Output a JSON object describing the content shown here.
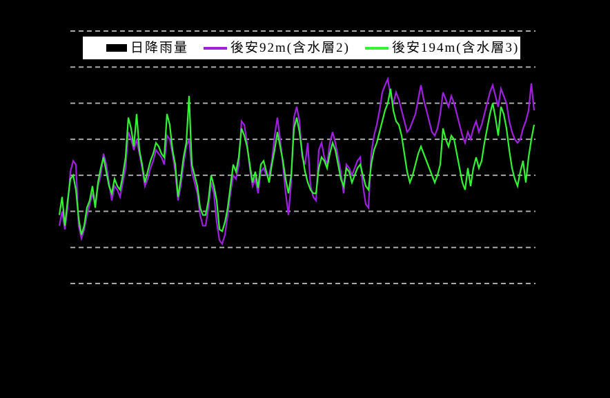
{
  "colors": {
    "background": "#000000",
    "gridline": "#AAAAAA",
    "legend_background": "#FFFFFF",
    "legend_border": "#000000",
    "legend_text": "#000000",
    "rainfall_series": "#000000",
    "well_92m_series": "#A020E0",
    "well_194m_series": "#33F333"
  },
  "legend": {
    "items": [
      {
        "label": "日降雨量",
        "swatch": "bar",
        "color": "#000000"
      },
      {
        "label": "後安92m(含水層2)",
        "swatch": "line",
        "color": "#A020E0"
      },
      {
        "label": "後安194m(含水層3)",
        "swatch": "line",
        "color": "#33F333"
      }
    ]
  },
  "chart_data": {
    "type": "line",
    "title": "",
    "xlabel": "",
    "ylabel": "",
    "grid": true,
    "legend_position": "top",
    "x_axis": {
      "tick_labels_visible": false
    },
    "y_axis": {
      "tick_labels_visible": false,
      "gridline_count": 8,
      "unit": "gridline-units (bottom visible gridline = 0, one unit per gridline)"
    },
    "ylim": [
      0,
      7
    ],
    "series": [
      {
        "name": "日降雨量",
        "type": "bar",
        "color": "#000000",
        "values": []
      },
      {
        "name": "後安92m(含水層2)",
        "type": "line",
        "color": "#A020E0",
        "values": [
          1.6,
          2.0,
          1.5,
          2.1,
          3.1,
          3.4,
          3.3,
          1.6,
          1.25,
          1.5,
          1.9,
          2.2,
          2.5,
          2.2,
          2.7,
          3.0,
          3.6,
          3.3,
          2.8,
          2.3,
          2.7,
          2.6,
          2.4,
          2.8,
          3.2,
          4.2,
          4.0,
          3.7,
          4.0,
          3.6,
          3.2,
          2.7,
          2.9,
          3.2,
          3.4,
          3.7,
          3.6,
          3.5,
          3.3,
          4.1,
          4.0,
          3.6,
          3.1,
          2.3,
          2.7,
          3.3,
          3.8,
          4.0,
          3.1,
          2.8,
          2.5,
          1.9,
          1.6,
          1.6,
          2.1,
          2.8,
          2.5,
          1.7,
          1.2,
          1.1,
          1.35,
          1.9,
          2.5,
          3.0,
          2.9,
          3.3,
          4.5,
          4.4,
          3.9,
          3.2,
          2.7,
          2.9,
          2.5,
          3.1,
          3.2,
          3.0,
          3.0,
          3.4,
          4.1,
          4.6,
          4.0,
          3.3,
          2.5,
          1.9,
          2.8,
          4.6,
          4.9,
          4.5,
          3.5,
          3.3,
          3.9,
          2.7,
          2.4,
          2.3,
          3.7,
          3.9,
          3.5,
          3.3,
          3.9,
          4.2,
          3.9,
          3.5,
          3.1,
          2.5,
          3.3,
          3.2,
          3.0,
          3.2,
          3.4,
          3.5,
          2.7,
          2.2,
          2.1,
          3.6,
          4.1,
          4.4,
          4.8,
          5.3,
          5.5,
          5.67,
          5.2,
          5.0,
          5.3,
          5.1,
          4.8,
          4.5,
          4.2,
          4.3,
          4.5,
          4.7,
          5.1,
          5.5,
          5.1,
          4.8,
          4.5,
          4.2,
          4.1,
          4.3,
          4.7,
          5.3,
          5.1,
          4.9,
          5.2,
          5.0,
          4.7,
          4.4,
          4.1,
          3.9,
          4.2,
          4.0,
          4.3,
          4.5,
          4.2,
          4.4,
          4.7,
          5.0,
          5.3,
          5.5,
          5.2,
          4.9,
          5.4,
          5.2,
          5.0,
          4.5,
          4.2,
          4.0,
          3.9,
          4.0,
          4.3,
          4.5,
          4.8,
          5.55,
          4.8
        ]
      },
      {
        "name": "後安194m(含水層3)",
        "type": "line",
        "color": "#33F333",
        "values": [
          1.9,
          2.4,
          1.6,
          2.3,
          2.9,
          3.0,
          2.6,
          1.8,
          1.35,
          1.6,
          2.1,
          2.3,
          2.7,
          2.1,
          2.8,
          3.2,
          3.5,
          3.1,
          2.7,
          2.5,
          2.9,
          2.7,
          2.6,
          3.0,
          3.5,
          4.6,
          4.3,
          3.8,
          4.7,
          3.7,
          3.3,
          2.8,
          3.1,
          3.4,
          3.6,
          3.9,
          3.8,
          3.6,
          3.5,
          4.7,
          4.4,
          3.7,
          3.3,
          2.4,
          2.9,
          3.5,
          3.9,
          5.2,
          3.3,
          3.0,
          2.7,
          2.1,
          1.9,
          1.9,
          2.3,
          3.0,
          2.7,
          2.3,
          1.5,
          1.45,
          1.7,
          2.1,
          2.7,
          3.3,
          3.1,
          3.5,
          4.3,
          4.1,
          3.8,
          3.3,
          2.8,
          3.1,
          2.65,
          3.3,
          3.4,
          3.1,
          2.8,
          3.3,
          3.7,
          4.2,
          3.8,
          3.4,
          2.9,
          2.5,
          3.0,
          4.3,
          4.6,
          4.2,
          3.6,
          3.1,
          2.8,
          2.6,
          2.5,
          2.5,
          3.2,
          3.5,
          3.4,
          3.2,
          3.6,
          3.9,
          3.7,
          3.3,
          2.9,
          2.7,
          3.2,
          3.1,
          2.8,
          3.0,
          3.2,
          3.3,
          3.0,
          2.7,
          2.6,
          3.3,
          3.7,
          3.9,
          4.2,
          4.5,
          4.8,
          5.0,
          5.4,
          4.8,
          4.5,
          4.4,
          4.1,
          3.6,
          3.1,
          2.8,
          3.0,
          3.3,
          3.6,
          3.8,
          3.6,
          3.4,
          3.2,
          3.0,
          2.8,
          3.0,
          3.3,
          4.3,
          4.0,
          3.8,
          4.1,
          4.0,
          3.6,
          3.2,
          2.8,
          2.6,
          3.2,
          2.7,
          3.2,
          3.5,
          3.2,
          3.4,
          3.9,
          4.3,
          4.7,
          5.0,
          4.6,
          4.1,
          4.9,
          4.7,
          4.3,
          3.7,
          3.2,
          2.9,
          2.7,
          3.1,
          3.4,
          2.8,
          3.5,
          4.0,
          4.4
        ]
      }
    ]
  }
}
